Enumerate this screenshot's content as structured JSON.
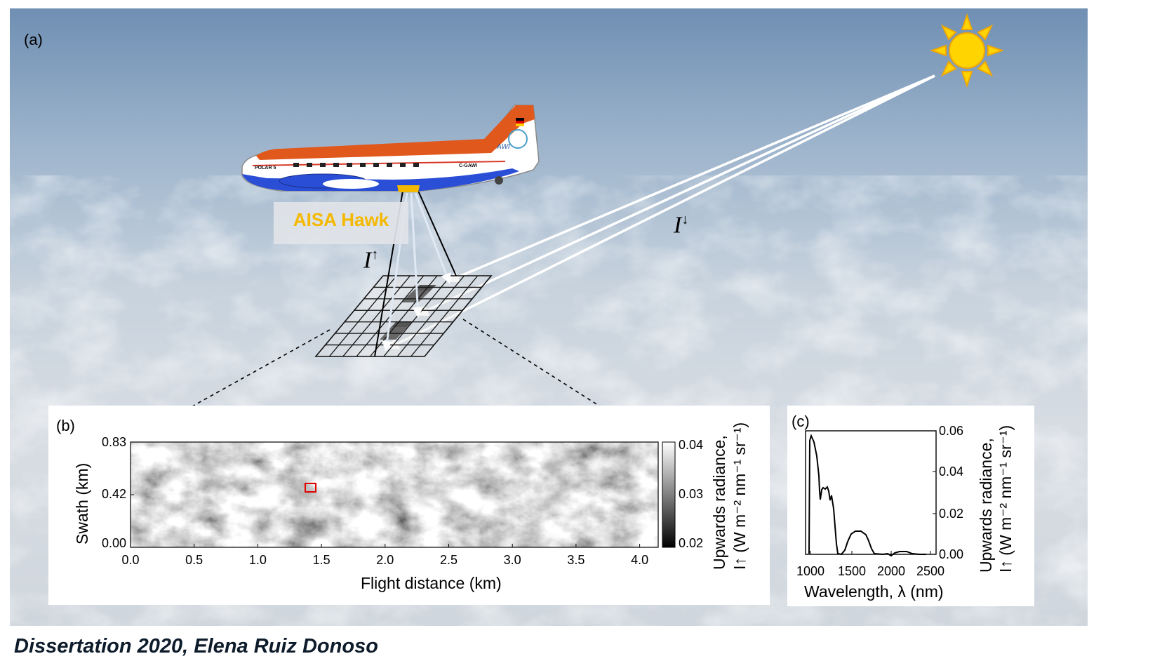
{
  "panels": {
    "a": "(a)",
    "b": "(b)",
    "c": "(c)"
  },
  "instrument_label": "AISA Hawk",
  "aircraft_livery": {
    "nose_text": "POLAR 5",
    "registration": "C-GAWI",
    "logo_text": "AWI"
  },
  "symbols": {
    "upward": "I",
    "upward_arrow": "↑",
    "downward": "I",
    "downward_arrow": "↓"
  },
  "colors": {
    "sky": "#9fb4c9",
    "instrument": "#f5b800",
    "sun": "#ffd400",
    "fuselage_top": "#e0581c",
    "fuselage_bottom": "#2a4fd6"
  },
  "caption": "Dissertation 2020, Elena Ruiz Donoso",
  "panel_b": {
    "xlabel": "Flight distance (km)",
    "ylabel": "Swath (km)",
    "xticks": [
      "0.0",
      "0.5",
      "1.0",
      "1.5",
      "2.0",
      "2.5",
      "3.0",
      "3.5",
      "4.0"
    ],
    "yticks": [
      "0.83",
      "0.42",
      "0.00"
    ],
    "colorbar_ticks": [
      "0.04",
      "0.03",
      "0.02"
    ],
    "colorbar_label_line1": "Upwards radiance,",
    "colorbar_label_line2": "I↑ (W m⁻² nm⁻¹ sr⁻¹)"
  },
  "panel_c": {
    "xlabel": "Wavelength, λ (nm)",
    "xticks": [
      "1000",
      "1500",
      "2000",
      "2500"
    ],
    "yticks": [
      "0.06",
      "0.04",
      "0.02",
      "0.00"
    ],
    "ylabel_line1": "Upwards radiance,",
    "ylabel_line2": "I↑ (W m⁻² nm⁻¹ sr⁻¹)"
  }
}
